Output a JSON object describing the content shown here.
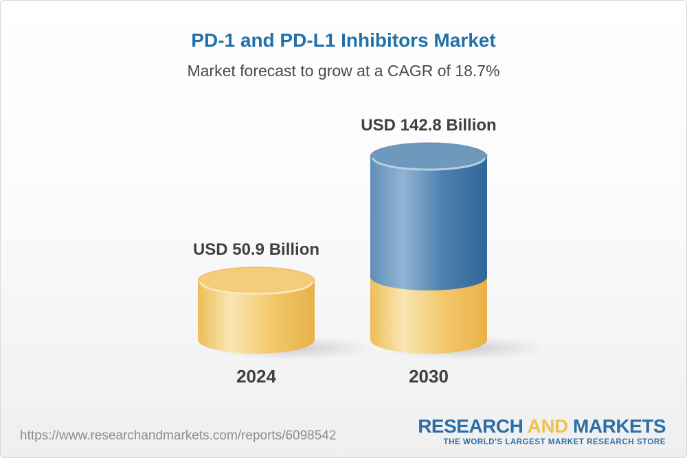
{
  "header": {
    "title": "PD-1 and PD-L1 Inhibitors Market",
    "subtitle": "Market forecast to grow at a CAGR of 18.7%"
  },
  "chart_data": {
    "type": "bar",
    "title": "PD-1 and PD-L1 Inhibitors Market",
    "subtitle": "Market forecast to grow at a CAGR of 18.7%",
    "categories": [
      "2024",
      "2030"
    ],
    "values": [
      50.9,
      142.8
    ],
    "unit": "USD Billion",
    "cagr_percent": 18.7,
    "bars": [
      {
        "year": "2024",
        "value": 50.9,
        "label": "USD 50.9 Billion",
        "segments": [
          "gold"
        ]
      },
      {
        "year": "2030",
        "value": 142.8,
        "label": "USD 142.8 Billion",
        "segments": [
          "gold",
          "blue"
        ]
      }
    ],
    "legend_position": "none",
    "grid": false,
    "colors": {
      "gold_body_left": "#edbd58",
      "gold_body_highlight": "#f9e6b2",
      "gold_body_mid": "#f2c96d",
      "gold_body_right": "#e8b149",
      "gold_cap": "#f3cd79",
      "gold_cap_rim": "#fbeac4",
      "gold_cap_back_rim": "#dfab43",
      "blue_body_left": "#5f8eb9",
      "blue_body_highlight": "#93b3d2",
      "blue_body_mid": "#4e80ae",
      "blue_body_right": "#30679a",
      "blue_cap": "#6f98bd",
      "blue_cap_rim": "#c6d7e6",
      "blue_cap_back_rim": "#4c769e",
      "label_text": "#3e3f41",
      "title_blue": "#2171a8"
    }
  },
  "footer": {
    "url": "https://www.researchandmarkets.com/reports/6098542",
    "logo": {
      "word1": "RESEARCH",
      "word2": "AND",
      "word3": "MARKETS",
      "tagline": "THE WORLD'S LARGEST MARKET RESEARCH STORE"
    }
  }
}
